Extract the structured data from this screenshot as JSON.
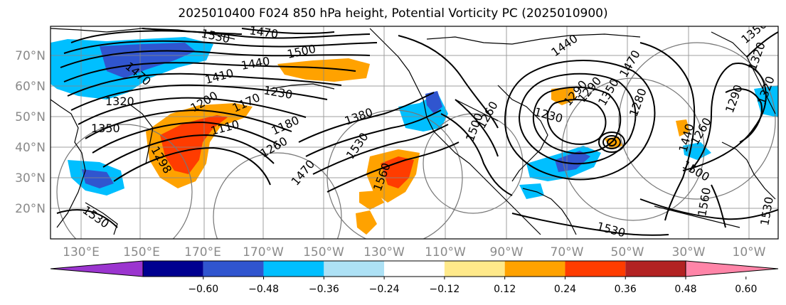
{
  "title": "2025010400 F024 850 hPa height, Potential Vorticity PC (2025010900)",
  "map": {
    "lat_labels": [
      "70°N",
      "60°N",
      "50°N",
      "40°N",
      "30°N",
      "20°N"
    ],
    "lon_labels": [
      "130°E",
      "150°E",
      "170°E",
      "170°W",
      "150°W",
      "130°W",
      "110°W",
      "90°W",
      "70°W",
      "50°W",
      "30°W",
      "10°W"
    ],
    "contour_labels": [
      "1530",
      "1470",
      "1470",
      "1500",
      "1440",
      "1410",
      "1230",
      "1320",
      "1350",
      "1200",
      "1170",
      "1110",
      "1180",
      "1260",
      "1380",
      "1530",
      "1470",
      "1560",
      "1530",
      "1440",
      "1470",
      "1350",
      "1320",
      "1290",
      "1230",
      "1500",
      "1350",
      "1280",
      "1260",
      "1290",
      "1260",
      "1320",
      "1440",
      "1500",
      "1560",
      "1530",
      "1530",
      "1298",
      "1290"
    ]
  },
  "colorbar": {
    "colors": [
      "#9b35cf",
      "#000090",
      "#3055cf",
      "#00bfff",
      "#ade1f5",
      "#ffffff",
      "#ffe98a",
      "#ffa200",
      "#ff3c00",
      "#b22222",
      "#ff85a8"
    ],
    "ticks": [
      "−0.60",
      "−0.48",
      "−0.36",
      "−0.24",
      "−0.12",
      "0.12",
      "0.24",
      "0.36",
      "0.48",
      "0.60"
    ]
  }
}
